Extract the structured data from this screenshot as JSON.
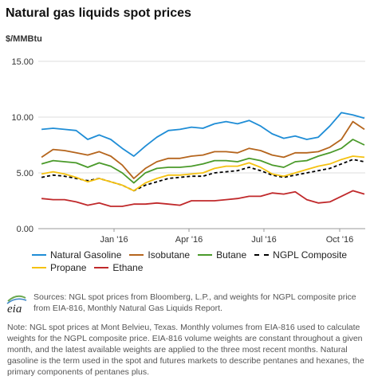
{
  "title": "Natural gas liquids spot prices",
  "unit_label": "$/MMBtu",
  "sources": "Sources: NGL spot prices from Bloomberg, L.P., and weights for NGPL composite price from EIA-816, Monthly Natural Gas Liquids Report.",
  "note": "Note: NGL spot prices at Mont Belvieu, Texas. Monthly volumes from EIA-816 used to calculate weights for the NGPL composite price. EIA-816 volume weights are constant throughout a given month, and the latest available weights are applied to the three most recent months. Natural gasoline is the term used in the spot and futures markets to describe pentanes and hexanes, the primary components of pentanes plus.",
  "logo_text": "eia",
  "chart_data": {
    "type": "line",
    "title": "Natural gas liquids spot prices",
    "ylabel": "$/MMBtu",
    "xlabel": "",
    "ylim": [
      0,
      15
    ],
    "xlim": [
      "2015-10-01",
      "2016-11-01"
    ],
    "yticks": [
      0,
      5,
      10,
      15
    ],
    "ytick_labels": [
      "0.00",
      "5.00",
      "10.00",
      "15.00"
    ],
    "xticks": [
      "2016-01-01",
      "2016-04-01",
      "2016-07-01",
      "2016-10-01"
    ],
    "xtick_labels": [
      "Jan '16",
      "Apr '16",
      "Jul '16",
      "Oct '16"
    ],
    "grid": true,
    "legend_position": "bottom",
    "x": [
      "2015-10-05",
      "2015-10-19",
      "2015-11-02",
      "2015-11-16",
      "2015-11-30",
      "2015-12-14",
      "2015-12-28",
      "2016-01-11",
      "2016-01-25",
      "2016-02-08",
      "2016-02-22",
      "2016-03-07",
      "2016-03-21",
      "2016-04-04",
      "2016-04-18",
      "2016-05-02",
      "2016-05-16",
      "2016-05-30",
      "2016-06-13",
      "2016-06-27",
      "2016-07-11",
      "2016-07-25",
      "2016-08-08",
      "2016-08-22",
      "2016-09-05",
      "2016-09-19",
      "2016-10-03",
      "2016-10-17",
      "2016-10-31"
    ],
    "series": [
      {
        "name": "Natural Gasoline",
        "color": "#1f8dd6",
        "dashed": false,
        "values": [
          8.9,
          9.0,
          8.9,
          8.8,
          8.0,
          8.4,
          8.0,
          7.2,
          6.5,
          7.4,
          8.2,
          8.8,
          8.9,
          9.1,
          9.0,
          9.4,
          9.6,
          9.4,
          9.7,
          9.2,
          8.5,
          8.1,
          8.3,
          8.0,
          8.2,
          9.2,
          10.4,
          10.2,
          9.9
        ]
      },
      {
        "name": "Isobutane",
        "color": "#b5651d",
        "dashed": false,
        "values": [
          6.4,
          7.1,
          7.0,
          6.8,
          6.6,
          6.9,
          6.5,
          5.7,
          4.5,
          5.4,
          6.0,
          6.3,
          6.3,
          6.5,
          6.6,
          6.9,
          6.9,
          6.8,
          7.2,
          7.0,
          6.6,
          6.4,
          6.8,
          6.8,
          6.9,
          7.3,
          8.0,
          9.6,
          8.9
        ]
      },
      {
        "name": "Butane",
        "color": "#4a9a2a",
        "dashed": false,
        "values": [
          5.8,
          6.1,
          6.0,
          5.9,
          5.5,
          5.9,
          5.6,
          5.0,
          4.1,
          5.0,
          5.4,
          5.5,
          5.5,
          5.6,
          5.8,
          6.1,
          6.1,
          6.0,
          6.3,
          6.1,
          5.7,
          5.5,
          6.0,
          6.1,
          6.5,
          6.8,
          7.2,
          8.0,
          7.5
        ]
      },
      {
        "name": "NGPL Composite",
        "color": "#000000",
        "dashed": true,
        "values": [
          4.6,
          4.8,
          4.7,
          4.5,
          4.3,
          4.5,
          4.2,
          3.9,
          3.4,
          3.9,
          4.2,
          4.5,
          4.6,
          4.7,
          4.7,
          5.0,
          5.1,
          5.2,
          5.5,
          5.2,
          4.8,
          4.6,
          4.8,
          5.0,
          5.2,
          5.4,
          5.8,
          6.2,
          6.0
        ]
      },
      {
        "name": "Propane",
        "color": "#f5c211",
        "dashed": false,
        "values": [
          4.9,
          5.1,
          4.9,
          4.6,
          4.2,
          4.5,
          4.2,
          3.9,
          3.4,
          4.1,
          4.5,
          4.8,
          4.8,
          4.9,
          5.0,
          5.4,
          5.6,
          5.6,
          5.9,
          5.5,
          4.9,
          4.7,
          5.0,
          5.3,
          5.6,
          5.8,
          6.2,
          6.5,
          6.4
        ]
      },
      {
        "name": "Ethane",
        "color": "#c0292b",
        "dashed": false,
        "values": [
          2.7,
          2.6,
          2.6,
          2.4,
          2.1,
          2.3,
          2.0,
          2.0,
          2.2,
          2.2,
          2.3,
          2.2,
          2.1,
          2.5,
          2.5,
          2.5,
          2.6,
          2.7,
          2.9,
          2.9,
          3.2,
          3.1,
          3.3,
          2.6,
          2.3,
          2.4,
          2.9,
          3.4,
          3.1
        ]
      }
    ]
  }
}
